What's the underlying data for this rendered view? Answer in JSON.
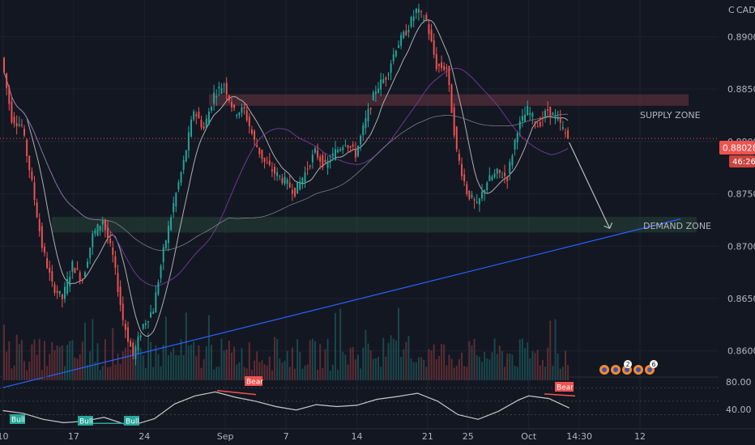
{
  "header": {
    "currency": "CAD",
    "mode_glyph": "C"
  },
  "colors": {
    "background": "#131722",
    "grid": "#1e2230",
    "bull": "#26a69a",
    "bear": "#ef5350",
    "trendline": "#2962ff",
    "supply_zone": "#6b3540",
    "demand_zone": "#2a4a3a",
    "ma_fast": "#c9c9c9",
    "ma_slow": "#7b3fa3",
    "rsi_line": "#c8c8c8",
    "price_tag": "#ef5350"
  },
  "annotations": {
    "supply_zone_label": "SUPPLY ZONE",
    "demand_zone_label": "DEMAND ZONE",
    "supply_zone_range": [
      0.8834,
      0.8845
    ],
    "demand_zone_range": [
      0.8713,
      0.8728
    ],
    "trendline": {
      "from": [
        "Aug 10",
        0.8565
      ],
      "to": [
        "Oct 16",
        0.8726
      ]
    },
    "projection_arrow": {
      "from": [
        "Oct 5",
        0.8799
      ],
      "to": [
        "Oct 9",
        0.8717
      ]
    }
  },
  "price_tag": {
    "value": "0.88028",
    "countdown": "46:26"
  },
  "event_badges": [
    "2",
    "6"
  ],
  "rsi": {
    "levels": [
      "80.00",
      "40.00"
    ],
    "labels": {
      "bull": "Bull",
      "bear": "Bear"
    }
  },
  "chart_data": {
    "type": "candlestick",
    "title": "",
    "xlabel": "",
    "ylabel": "",
    "x_ticks": [
      "10",
      "17",
      "24",
      "Sep",
      "7",
      "14",
      "21",
      "25",
      "Oct",
      "14:30",
      "12"
    ],
    "y_ticks": [
      "0.89000",
      "0.88500",
      "0.88000",
      "0.87500",
      "0.87000",
      "0.86500",
      "0.86000"
    ],
    "ylim": [
      0.8572,
      0.8935
    ],
    "x_range": [
      "Aug 9",
      "Oct 16"
    ],
    "grid": true,
    "series": [
      {
        "kind": "close_path",
        "points": [
          [
            "Aug 10",
            0.888
          ],
          [
            "Aug 11",
            0.8822
          ],
          [
            "Aug 12",
            0.8815
          ],
          [
            "Aug 13",
            0.876
          ],
          [
            "Aug 14",
            0.87
          ],
          [
            "Aug 15",
            0.8663
          ],
          [
            "Aug 16",
            0.865
          ],
          [
            "Aug 17",
            0.8682
          ],
          [
            "Aug 18",
            0.8668
          ],
          [
            "Aug 19",
            0.871
          ],
          [
            "Aug 20",
            0.8725
          ],
          [
            "Aug 21",
            0.869
          ],
          [
            "Aug 22",
            0.863
          ],
          [
            "Aug 23",
            0.8595
          ],
          [
            "Aug 24",
            0.8625
          ],
          [
            "Aug 25",
            0.864
          ],
          [
            "Aug 26",
            0.8695
          ],
          [
            "Aug 27",
            0.874
          ],
          [
            "Aug 28",
            0.878
          ],
          [
            "Aug 29",
            0.883
          ],
          [
            "Aug 30",
            0.8812
          ],
          [
            "Aug 31",
            0.8845
          ],
          [
            "Sep 1",
            0.8855
          ],
          [
            "Sep 2",
            0.8828
          ],
          [
            "Sep 3",
            0.883
          ],
          [
            "Sep 4",
            0.88
          ],
          [
            "Sep 5",
            0.878
          ],
          [
            "Sep 6",
            0.877
          ],
          [
            "Sep 7",
            0.8762
          ],
          [
            "Sep 8",
            0.8752
          ],
          [
            "Sep 9",
            0.877
          ],
          [
            "Sep 10",
            0.879
          ],
          [
            "Sep 11",
            0.8776
          ],
          [
            "Sep 12",
            0.879
          ],
          [
            "Sep 13",
            0.88
          ],
          [
            "Sep 14",
            0.8788
          ],
          [
            "Sep 15",
            0.882
          ],
          [
            "Sep 16",
            0.885
          ],
          [
            "Sep 17",
            0.8862
          ],
          [
            "Sep 18",
            0.889
          ],
          [
            "Sep 19",
            0.8905
          ],
          [
            "Sep 20",
            0.8925
          ],
          [
            "Sep 21",
            0.8915
          ],
          [
            "Sep 22",
            0.8872
          ],
          [
            "Sep 23",
            0.887
          ],
          [
            "Sep 24",
            0.879
          ],
          [
            "Sep 25",
            0.8752
          ],
          [
            "Sep 26",
            0.8738
          ],
          [
            "Sep 27",
            0.8762
          ],
          [
            "Sep 28",
            0.877
          ],
          [
            "Sep 29",
            0.8766
          ],
          [
            "Sep 30",
            0.8812
          ],
          [
            "Oct 1",
            0.883
          ],
          [
            "Oct 2",
            0.8815
          ],
          [
            "Oct 3",
            0.883
          ],
          [
            "Oct 4",
            0.882
          ],
          [
            "Oct 5",
            0.8803
          ]
        ]
      },
      {
        "kind": "volume",
        "values": []
      },
      {
        "name": "RSI",
        "kind": "oscillator",
        "range": [
          20,
          95
        ],
        "points": [
          [
            "Aug 10",
            46
          ],
          [
            "Aug 12",
            42
          ],
          [
            "Aug 14",
            33
          ],
          [
            "Aug 16",
            28
          ],
          [
            "Aug 18",
            30
          ],
          [
            "Aug 20",
            36
          ],
          [
            "Aug 22",
            26
          ],
          [
            "Aug 23",
            25
          ],
          [
            "Aug 25",
            34
          ],
          [
            "Aug 27",
            56
          ],
          [
            "Aug 29",
            68
          ],
          [
            "Aug 31",
            74
          ],
          [
            "Sep 2",
            66
          ],
          [
            "Sep 4",
            60
          ],
          [
            "Sep 6",
            52
          ],
          [
            "Sep 8",
            47
          ],
          [
            "Sep 10",
            55
          ],
          [
            "Sep 12",
            52
          ],
          [
            "Sep 14",
            54
          ],
          [
            "Sep 16",
            63
          ],
          [
            "Sep 18",
            67
          ],
          [
            "Sep 20",
            72
          ],
          [
            "Sep 22",
            60
          ],
          [
            "Sep 24",
            40
          ],
          [
            "Sep 26",
            33
          ],
          [
            "Sep 28",
            45
          ],
          [
            "Sep 30",
            62
          ],
          [
            "Oct 1",
            68
          ],
          [
            "Oct 3",
            64
          ],
          [
            "Oct 5",
            50
          ]
        ]
      }
    ]
  }
}
